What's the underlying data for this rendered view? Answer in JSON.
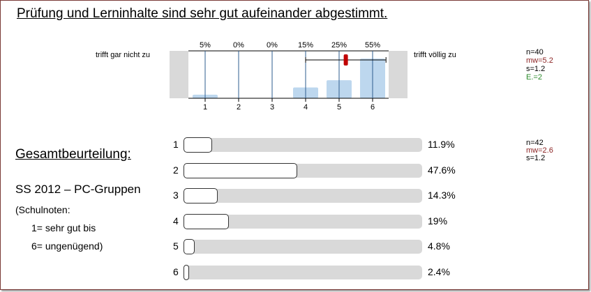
{
  "title": "Prüfung und Lerninhalte sind sehr gut aufeinander abgestimmt.",
  "scale": {
    "left_label": "trifft gar nicht zu",
    "right_label": "trifft völlig zu"
  },
  "stats_top": {
    "n": "n=40",
    "mw": "mw=5.2",
    "s": "s=1.2",
    "e": "E.=2"
  },
  "stats_bottom": {
    "n": "n=42",
    "mw": "mw=2.6",
    "s": "s=1.2"
  },
  "colors": {
    "bar": "#bdd7ee",
    "gridline": "#2e5d8f",
    "mean": "#c00000",
    "mw_text": "#8b2323",
    "e_text": "#2a8a2a",
    "gray_panel": "#d9d9d9"
  },
  "section": {
    "heading": "Gesamtbeurteilung:",
    "group": "SS 2012 – PC-Gruppen",
    "note1": "(Schulnoten:",
    "note2": "1= sehr gut bis",
    "note3": "6= ungenügend)"
  },
  "chart_data": [
    {
      "type": "bar",
      "title": "Prüfung und Lerninhalte sind sehr gut aufeinander abgestimmt.",
      "categories": [
        "1",
        "2",
        "3",
        "4",
        "5",
        "6"
      ],
      "values": [
        5,
        0,
        0,
        15,
        25,
        55
      ],
      "value_labels": [
        "5%",
        "0%",
        "0%",
        "15%",
        "25%",
        "55%"
      ],
      "mean": 5.2,
      "sd": 1.2,
      "n": 40,
      "sd_range": [
        4.0,
        6.4
      ]
    },
    {
      "type": "bar",
      "orientation": "horizontal",
      "categories": [
        "1",
        "2",
        "3",
        "4",
        "5",
        "6"
      ],
      "values": [
        11.9,
        47.6,
        14.3,
        19,
        4.8,
        2.4
      ],
      "value_labels": [
        "11.9%",
        "47.6%",
        "14.3%",
        "19%",
        "4.8%",
        "2.4%"
      ],
      "n": 42,
      "mean": 2.6,
      "sd": 1.2
    }
  ]
}
